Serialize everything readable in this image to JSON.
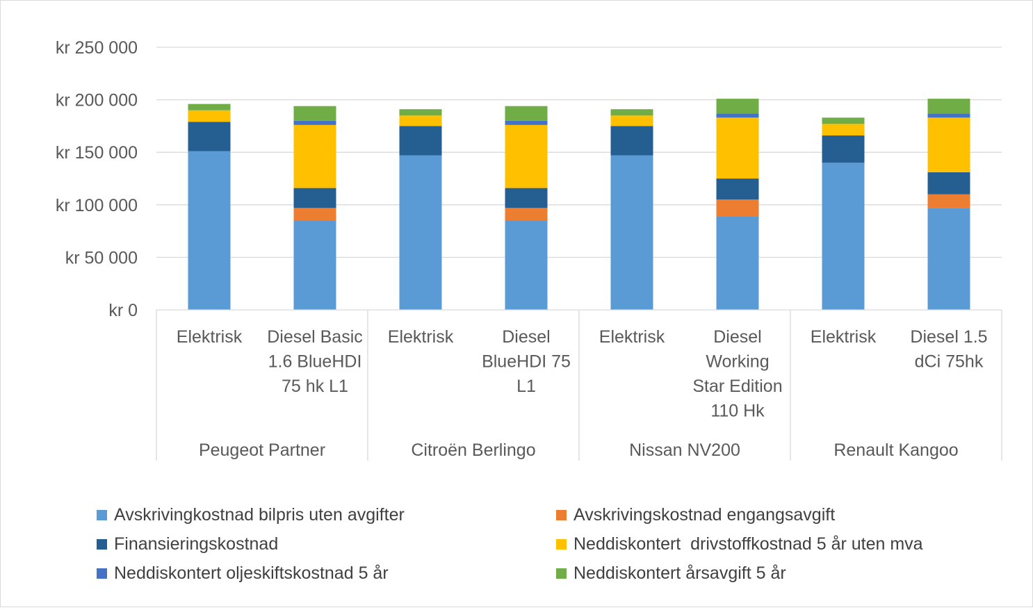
{
  "chart_data": {
    "type": "bar",
    "stacked": true,
    "groups": [
      {
        "name": "Peugeot Partner",
        "categories": [
          "Elektrisk",
          "Diesel Basic 1.6 BlueHDI 75 hk L1"
        ]
      },
      {
        "name": "Citroën Berlingo",
        "categories": [
          "Elektrisk",
          "Diesel BlueHDI 75 L1"
        ]
      },
      {
        "name": "Nissan NV200",
        "categories": [
          "Elektrisk",
          "Diesel Working Star Edition 110 Hk"
        ]
      },
      {
        "name": "Renault Kangoo",
        "categories": [
          "Elektrisk",
          "Diesel 1.5 dCi 75hk"
        ]
      }
    ],
    "category_lines": [
      [
        "Elektrisk"
      ],
      [
        "Diesel Basic",
        "1.6 BlueHDI",
        "75 hk L1"
      ],
      [
        "Elektrisk"
      ],
      [
        "Diesel",
        "BlueHDI 75",
        "L1"
      ],
      [
        "Elektrisk"
      ],
      [
        "Diesel",
        "Working",
        "Star Edition",
        "110 Hk"
      ],
      [
        "Elektrisk"
      ],
      [
        "Diesel 1.5",
        "dCi 75hk"
      ]
    ],
    "series": [
      {
        "name": "Avskrivingkostnad bilpris uten avgifter",
        "color": "#5b9bd5",
        "values": [
          151000,
          85000,
          147000,
          85000,
          147000,
          89000,
          140000,
          97000
        ]
      },
      {
        "name": "Avskrivingskostnad engangsavgift",
        "color": "#ed7d31",
        "values": [
          0,
          12000,
          0,
          12000,
          0,
          16000,
          0,
          13000
        ]
      },
      {
        "name": "Finansieringskostnad",
        "color": "#255e91",
        "values": [
          28000,
          19000,
          28000,
          19000,
          28000,
          20000,
          26000,
          21000
        ]
      },
      {
        "name": "Neddiskontert  drivstoffkostnad 5 år uten mva",
        "color": "#ffc000",
        "values": [
          11000,
          60000,
          10000,
          60000,
          10000,
          58000,
          11000,
          52000
        ]
      },
      {
        "name": "Neddiskontert oljeskiftskostnad 5 år",
        "color": "#4472c4",
        "values": [
          0,
          4000,
          0,
          4000,
          0,
          4000,
          0,
          4000
        ]
      },
      {
        "name": "Neddiskontert årsavgift 5 år",
        "color": "#70ad47",
        "values": [
          6000,
          14000,
          6000,
          14000,
          6000,
          14000,
          6000,
          14000
        ]
      }
    ],
    "yaxis": {
      "ticks": [
        0,
        50000,
        100000,
        150000,
        200000,
        250000
      ],
      "tick_labels": [
        "kr  0",
        "kr 50 000",
        "kr 100 000",
        "kr 150 000",
        "kr 200 000",
        "kr 250 000"
      ],
      "ylim": [
        0,
        250000
      ]
    },
    "grid": true,
    "legend_position": "bottom",
    "title": "",
    "xlabel": "",
    "ylabel": ""
  }
}
